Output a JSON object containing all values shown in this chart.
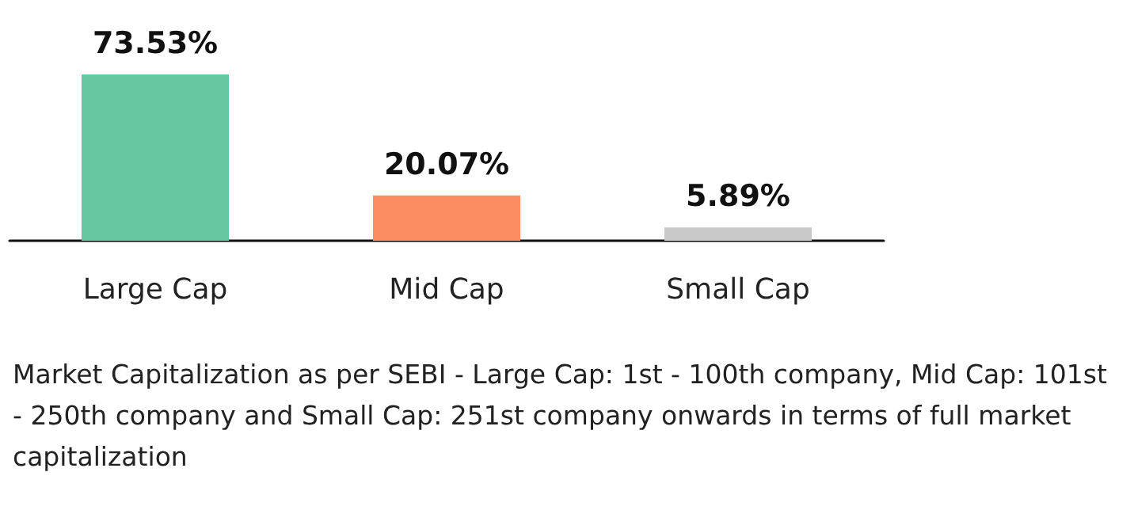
{
  "chart_data": {
    "type": "bar",
    "categories": [
      "Large Cap",
      "Mid Cap",
      "Small Cap"
    ],
    "values": [
      73.53,
      20.07,
      5.89
    ],
    "colors": [
      "#66c8a0",
      "#fc8d62",
      "#c8c8c8"
    ],
    "value_labels": [
      "73.53%",
      "20.07%",
      "5.89%"
    ],
    "annotations": [
      "Market Capitalization as per SEBI - Large Cap: 1st - 100th company, Mid Cap: 101st - 250th company and Small Cap: 251st company onwards in terms of full market capitalization"
    ],
    "grid": false
  }
}
